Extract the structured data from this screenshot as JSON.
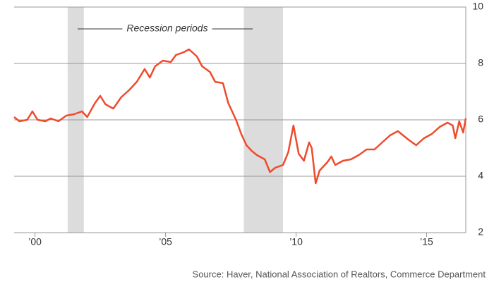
{
  "chart_data": {
    "type": "line",
    "annotation": "Recession periods",
    "source": "Source: Haver, National Association of Realtors, Commerce Department",
    "recessions": [
      [
        2001.25,
        2001.87
      ],
      [
        2008.0,
        2009.5
      ]
    ],
    "xlim": [
      1999.2,
      2016.5
    ],
    "xticks": [
      {
        "value": 2000,
        "label": "’00"
      },
      {
        "value": 2005,
        "label": "’05"
      },
      {
        "value": 2010,
        "label": "’10"
      },
      {
        "value": 2015,
        "label": "’15"
      }
    ],
    "ylim": [
      2,
      10
    ],
    "yticks": [
      2,
      4,
      6,
      8,
      10
    ],
    "grid": true,
    "series": [
      {
        "color": "#f04a2c",
        "x": [
          1999.2,
          1999.4,
          1999.7,
          1999.9,
          2000.1,
          2000.4,
          2000.6,
          2000.9,
          2001.2,
          2001.5,
          2001.8,
          2002.0,
          2002.3,
          2002.5,
          2002.7,
          2003.0,
          2003.3,
          2003.6,
          2003.9,
          2004.2,
          2004.4,
          2004.6,
          2004.9,
          2005.2,
          2005.4,
          2005.7,
          2005.9,
          2006.2,
          2006.4,
          2006.7,
          2006.9,
          2007.2,
          2007.4,
          2007.7,
          2007.9,
          2008.1,
          2008.3,
          2008.5,
          2008.8,
          2009.0,
          2009.2,
          2009.5,
          2009.7,
          2009.9,
          2010.1,
          2010.3,
          2010.5,
          2010.6,
          2010.75,
          2010.9,
          2011.2,
          2011.35,
          2011.5,
          2011.8,
          2012.1,
          2012.4,
          2012.7,
          2013.0,
          2013.3,
          2013.6,
          2013.9,
          2014.1,
          2014.3,
          2014.6,
          2014.9,
          2015.2,
          2015.5,
          2015.8,
          2016.0,
          2016.1,
          2016.25,
          2016.4,
          2016.5
        ],
        "values": [
          6.1,
          5.95,
          6.0,
          6.3,
          6.0,
          5.95,
          6.05,
          5.95,
          6.15,
          6.2,
          6.3,
          6.1,
          6.6,
          6.85,
          6.55,
          6.4,
          6.8,
          7.05,
          7.35,
          7.8,
          7.5,
          7.9,
          8.1,
          8.05,
          8.3,
          8.4,
          8.5,
          8.25,
          7.9,
          7.7,
          7.35,
          7.3,
          6.6,
          6.0,
          5.5,
          5.1,
          4.9,
          4.75,
          4.6,
          4.15,
          4.3,
          4.4,
          4.85,
          5.8,
          4.8,
          4.55,
          5.2,
          5.0,
          3.75,
          4.2,
          4.5,
          4.7,
          4.4,
          4.55,
          4.6,
          4.75,
          4.95,
          4.95,
          5.2,
          5.45,
          5.6,
          5.45,
          5.3,
          5.1,
          5.35,
          5.5,
          5.75,
          5.9,
          5.8,
          5.35,
          5.95,
          5.55,
          6.05
        ]
      }
    ]
  }
}
